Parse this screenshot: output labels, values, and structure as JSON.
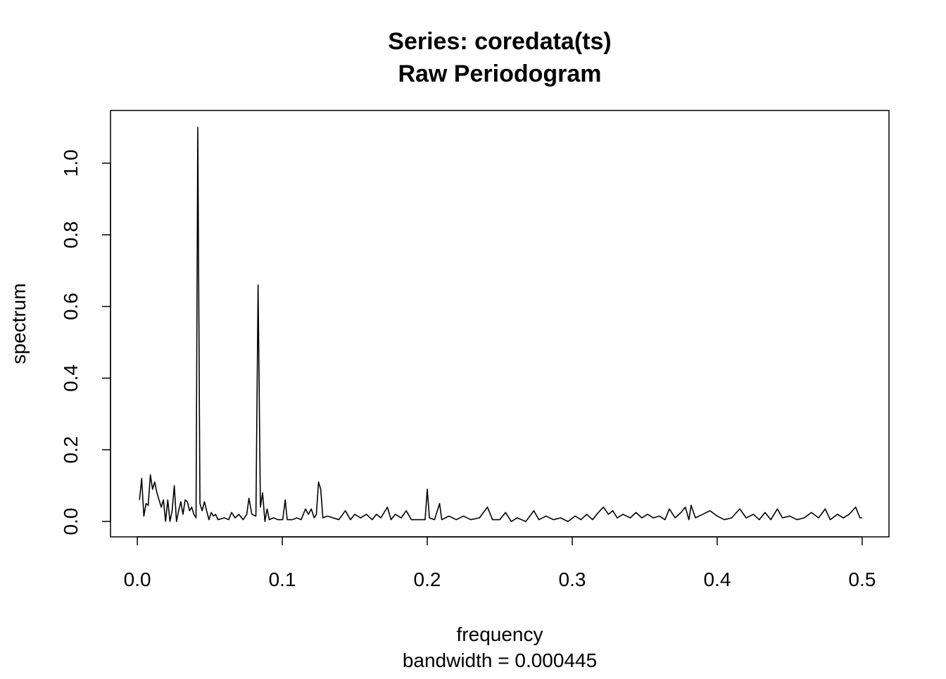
{
  "chart_data": {
    "type": "line",
    "title": "Series: coredata(ts)",
    "subtitle": "Raw Periodogram",
    "x_label": "frequency",
    "x_sublabel": "bandwidth = 0.000445",
    "y_label": "spectrum",
    "color": "#000000",
    "xlim": [
      -0.0185,
      0.5185
    ],
    "ylim": [
      -0.043,
      1.147
    ],
    "xticks": [
      {
        "value": 0,
        "label": "0.0"
      },
      0.1,
      0.2,
      0.3,
      0.4,
      0.5
    ],
    "yticks": [
      {
        "value": 0,
        "label": "0.0"
      },
      0.2,
      0.4,
      0.6,
      0.8,
      {
        "value": 1,
        "label": "1.0"
      }
    ],
    "x": [
      0.0015,
      0.003,
      0.0045,
      0.006,
      0.0075,
      0.009,
      0.0105,
      0.012,
      0.0135,
      0.015,
      0.0165,
      0.018,
      0.0195,
      0.021,
      0.0225,
      0.024,
      0.0255,
      0.027,
      0.0285,
      0.03,
      0.0315,
      0.033,
      0.0345,
      0.036,
      0.0375,
      0.039,
      0.0405,
      0.0417,
      0.0432,
      0.0447,
      0.0463,
      0.0478,
      0.0494,
      0.051,
      0.0525,
      0.054,
      0.0556,
      0.06,
      0.063,
      0.065,
      0.0675,
      0.07,
      0.073,
      0.0755,
      0.077,
      0.079,
      0.0818,
      0.0833,
      0.0849,
      0.0864,
      0.088,
      0.0895,
      0.091,
      0.094,
      0.097,
      0.1003,
      0.102,
      0.1034,
      0.107,
      0.11,
      0.113,
      0.116,
      0.118,
      0.12,
      0.122,
      0.1235,
      0.125,
      0.1265,
      0.128,
      0.131,
      0.135,
      0.139,
      0.1435,
      0.147,
      0.15,
      0.154,
      0.158,
      0.162,
      0.165,
      0.168,
      0.1725,
      0.175,
      0.178,
      0.182,
      0.1855,
      0.189,
      0.195,
      0.1985,
      0.2,
      0.2015,
      0.205,
      0.2085,
      0.21,
      0.215,
      0.22,
      0.225,
      0.23,
      0.236,
      0.2415,
      0.245,
      0.25,
      0.254,
      0.258,
      0.262,
      0.268,
      0.2735,
      0.277,
      0.282,
      0.287,
      0.292,
      0.297,
      0.302,
      0.306,
      0.31,
      0.314,
      0.318,
      0.3215,
      0.325,
      0.328,
      0.331,
      0.335,
      0.34,
      0.344,
      0.348,
      0.352,
      0.356,
      0.36,
      0.364,
      0.367,
      0.371,
      0.375,
      0.378,
      0.3805,
      0.382,
      0.385,
      0.39,
      0.395,
      0.4,
      0.405,
      0.41,
      0.4155,
      0.42,
      0.425,
      0.429,
      0.433,
      0.437,
      0.4415,
      0.445,
      0.45,
      0.455,
      0.46,
      0.465,
      0.47,
      0.4745,
      0.478,
      0.483,
      0.487,
      0.491,
      0.4955,
      0.4985,
      0.5
    ],
    "values": [
      0.06,
      0.12,
      0.015,
      0.05,
      0.045,
      0.13,
      0.09,
      0.11,
      0.08,
      0.06,
      0.04,
      0.06,
      0.0,
      0.06,
      0.0,
      0.03,
      0.1,
      0.0,
      0.03,
      0.055,
      0.02,
      0.06,
      0.055,
      0.03,
      0.04,
      0.02,
      0.01,
      1.1,
      0.05,
      0.03,
      0.055,
      0.03,
      0.005,
      0.025,
      0.015,
      0.02,
      0.005,
      0.01,
      0.005,
      0.025,
      0.01,
      0.02,
      0.005,
      0.02,
      0.065,
      0.02,
      0.015,
      0.66,
      0.04,
      0.08,
      0.0,
      0.035,
      0.005,
      0.01,
      0.005,
      0.005,
      0.06,
      0.005,
      0.005,
      0.01,
      0.005,
      0.035,
      0.02,
      0.035,
      0.01,
      0.02,
      0.11,
      0.09,
      0.01,
      0.015,
      0.01,
      0.005,
      0.03,
      0.005,
      0.02,
      0.01,
      0.02,
      0.005,
      0.02,
      0.01,
      0.04,
      0.005,
      0.02,
      0.01,
      0.03,
      0.005,
      0.005,
      0.005,
      0.09,
      0.01,
      0.005,
      0.05,
      0.005,
      0.015,
      0.005,
      0.015,
      0.005,
      0.01,
      0.04,
      0.005,
      0.005,
      0.025,
      0.0,
      0.01,
      0.0,
      0.03,
      0.005,
      0.015,
      0.005,
      0.01,
      0.0,
      0.015,
      0.005,
      0.02,
      0.005,
      0.025,
      0.04,
      0.02,
      0.03,
      0.01,
      0.02,
      0.01,
      0.025,
      0.01,
      0.02,
      0.01,
      0.015,
      0.005,
      0.035,
      0.01,
      0.025,
      0.04,
      0.005,
      0.045,
      0.01,
      0.02,
      0.03,
      0.015,
      0.005,
      0.01,
      0.035,
      0.01,
      0.02,
      0.005,
      0.025,
      0.005,
      0.035,
      0.01,
      0.015,
      0.005,
      0.01,
      0.025,
      0.01,
      0.035,
      0.005,
      0.02,
      0.01,
      0.02,
      0.04,
      0.01,
      0.01
    ]
  }
}
